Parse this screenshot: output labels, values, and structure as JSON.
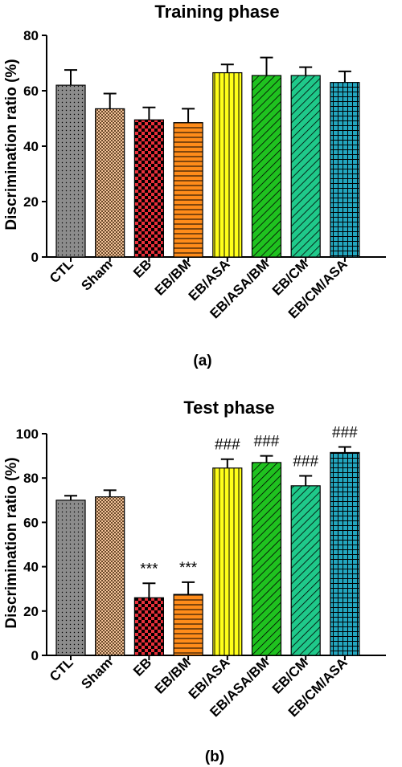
{
  "chart_data": [
    {
      "type": "bar",
      "panel_label": "(a)",
      "title": "Training phase",
      "ylabel": "Discrimination ratio (%)",
      "xlabel": "",
      "ylim": [
        0,
        80
      ],
      "yticks": [
        "0",
        "20",
        "40",
        "60",
        "80"
      ],
      "grid": false,
      "categories": [
        "CTL",
        "Sham",
        "EB",
        "EB/BM",
        "EB/ASA",
        "EB/ASA/BM",
        "EB/CM",
        "EB/CM/ASA"
      ],
      "values": [
        62,
        53.5,
        49.5,
        48.5,
        66.5,
        65.5,
        65.5,
        63
      ],
      "errors": [
        5.5,
        5.5,
        4.5,
        5,
        3,
        6.5,
        3,
        4
      ],
      "annotations": [
        "",
        "",
        "",
        "",
        "",
        "",
        "",
        ""
      ]
    },
    {
      "type": "bar",
      "panel_label": "(b)",
      "title": "Test phase",
      "ylabel": "Discrimination ratio (%)",
      "xlabel": "",
      "ylim": [
        0,
        100
      ],
      "yticks": [
        "0",
        "20",
        "40",
        "60",
        "80",
        "100"
      ],
      "grid": false,
      "categories": [
        "CTL",
        "Sham",
        "EB",
        "EB/BM",
        "EB/ASA",
        "EB/ASA/BM",
        "EB/CM",
        "EB/CM/ASA"
      ],
      "values": [
        70,
        71.5,
        26,
        27.5,
        84.5,
        87,
        76.5,
        91.5
      ],
      "errors": [
        2,
        3,
        6.5,
        5.5,
        4,
        3,
        4.5,
        2.5
      ],
      "annotations": [
        "",
        "",
        "***",
        "***",
        "###",
        "###",
        "###",
        "###"
      ]
    }
  ],
  "colors": {
    "bars": [
      "#8c8c8c",
      "#f2c29a",
      "#e8303a",
      "#ff8c1a",
      "#ffff1a",
      "#1fc21f",
      "#1fc98a",
      "#23a6bf"
    ],
    "patterns": [
      "dots",
      "checker-fine",
      "checker",
      "horizontal",
      "vertical",
      "diagonal",
      "diagonal",
      "grid"
    ],
    "axis": "#000000"
  }
}
